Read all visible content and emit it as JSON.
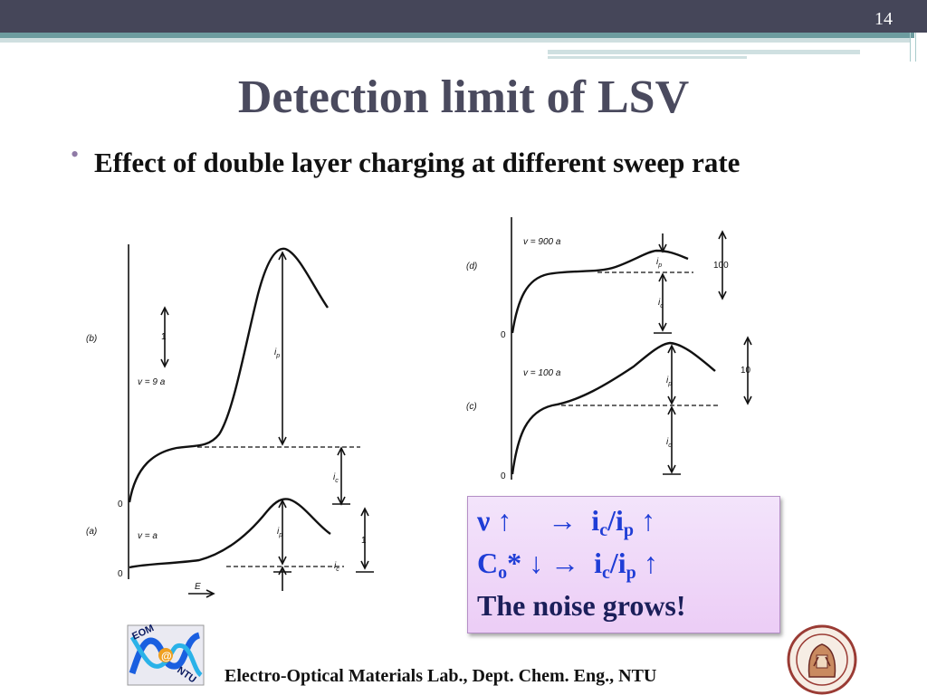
{
  "header": {
    "page_number": "14"
  },
  "title": "Detection limit of LSV",
  "bullet": {
    "symbol": "•",
    "text": "Effect of double layer charging at different sweep rate"
  },
  "figure_left": {
    "panel_b": {
      "label": "(b)",
      "rate": "v = 9 a",
      "scale": "1",
      "peak_label": "i",
      "peak_sub": "p",
      "charge_label": "i",
      "charge_sub": "c",
      "zero": "0"
    },
    "panel_a": {
      "label": "(a)",
      "rate": "v = a",
      "scale": "1",
      "peak_label": "i",
      "peak_sub": "p",
      "charge_label": "i",
      "charge_sub": "c",
      "zero": "0"
    },
    "x_axis": "E"
  },
  "figure_right": {
    "panel_d": {
      "label": "(d)",
      "rate": "v = 900 a",
      "scale": "100",
      "peak_label": "i",
      "peak_sub": "p",
      "charge_label": "i",
      "charge_sub": "c",
      "zero": "0"
    },
    "panel_c": {
      "label": "(c)",
      "rate": "v = 100 a",
      "scale": "10",
      "peak_label": "i",
      "peak_sub": "p",
      "charge_label": "i",
      "charge_sub": "c",
      "zero": "0"
    }
  },
  "note": {
    "line1": {
      "a": "ν ↑",
      "arrow": "→",
      "i1": "i",
      "s1": "c",
      "slash": "/i",
      "s2": "p",
      "up": "↑"
    },
    "line2": {
      "a": "C",
      "sub": "o",
      "b": "* ↓ →",
      "i1": "i",
      "s1": "c",
      "slash": "/i",
      "s2": "p",
      "up": "↑"
    },
    "line3": "The noise grows!"
  },
  "logo_text": {
    "top": "EOM",
    "mid": "@",
    "bottom": "NTU"
  },
  "footer": "Electro-Optical Materials Lab., Dept. Chem. Eng., NTU",
  "colors": {
    "topbar": "#454659",
    "accent": "#6d9c9f",
    "title": "#4a4a5e",
    "note_text": "#1f3dd6",
    "note_bg": "#eccdf6"
  }
}
